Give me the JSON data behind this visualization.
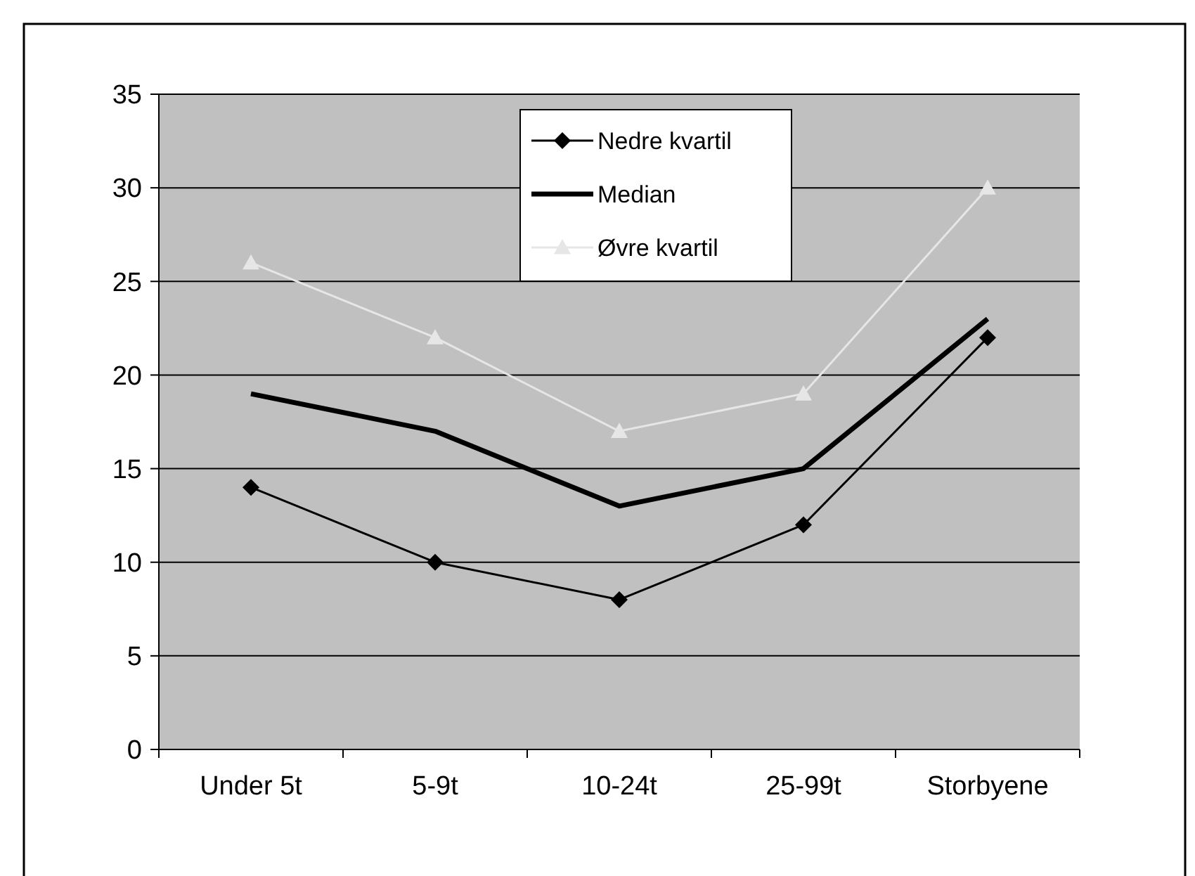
{
  "chart_data": {
    "type": "line",
    "categories": [
      "Under 5t",
      "5-9t",
      "10-24t",
      "25-99t",
      "Storbyene"
    ],
    "series": [
      {
        "name": "Nedre kvartil",
        "color": "#000000",
        "marker": "diamond",
        "values": [
          14,
          10,
          8,
          12,
          22
        ]
      },
      {
        "name": "Median",
        "color": "#000000",
        "marker": "none",
        "values": [
          19,
          17,
          13,
          15,
          23
        ]
      },
      {
        "name": "Øvre kvartil",
        "color": "#e6e6e6",
        "marker": "triangle",
        "values": [
          26,
          22,
          17,
          19,
          30
        ]
      }
    ],
    "ylim": [
      0,
      35
    ],
    "yticks": [
      0,
      5,
      10,
      15,
      20,
      25,
      30,
      35
    ],
    "grid": "y",
    "legend": "top"
  }
}
